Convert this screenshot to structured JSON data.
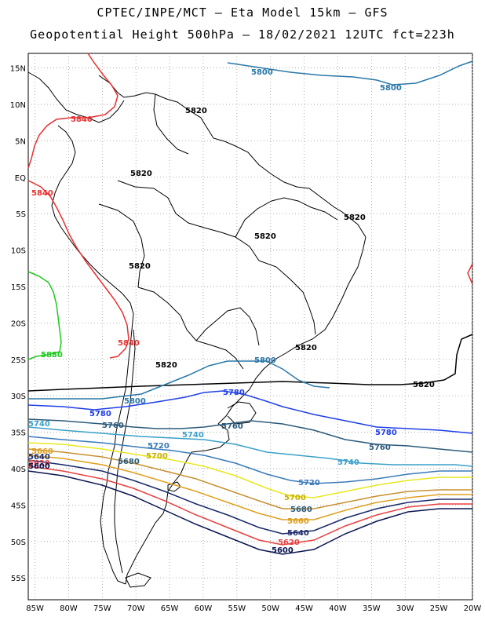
{
  "header": {
    "line1": "CPTEC/INPE/MCT –  Eta Model 15km – GFS",
    "line2": "Geopotential Height 500hPa – 18/02/2021 12UTC fct=223h"
  },
  "map": {
    "lon_range": [
      -86,
      -20
    ],
    "lat_range": [
      -58,
      17
    ],
    "lat_ticks": [
      "15N",
      "10N",
      "5N",
      "EQ",
      "5S",
      "10S",
      "15S",
      "20S",
      "25S",
      "30S",
      "35S",
      "40S",
      "45S",
      "50S",
      "55S"
    ],
    "lon_ticks": [
      "85W",
      "80W",
      "75W",
      "70W",
      "65W",
      "60W",
      "55W",
      "50W",
      "45W",
      "40W",
      "35W",
      "30W",
      "25W",
      "20W"
    ]
  },
  "contours": [
    {
      "value": "5840",
      "color": "#e83030",
      "labels": [
        "5840",
        "5840",
        "5840"
      ]
    },
    {
      "value": "5880",
      "color": "#1fc81f",
      "labels": [
        "5880"
      ]
    },
    {
      "value": "5820",
      "color": "#000000",
      "labels": [
        "5820",
        "5820",
        "5820",
        "5820",
        "5820",
        "5820",
        "5820",
        "5820"
      ]
    },
    {
      "value": "5800",
      "color": "#2a78a8",
      "labels": [
        "5800",
        "5800",
        "5800",
        "5800"
      ]
    },
    {
      "value": "5780",
      "color": "#1e3ee8",
      "labels": [
        "5780",
        "5780",
        "5780"
      ]
    },
    {
      "value": "5760",
      "color": "#2a5a7a",
      "labels": [
        "5760",
        "5760",
        "5760"
      ]
    },
    {
      "value": "5740",
      "color": "#3aa0c8",
      "labels": [
        "5740",
        "5740",
        "5740"
      ]
    },
    {
      "value": "5720",
      "color": "#3a7ab8",
      "labels": [
        "5720",
        "5720"
      ]
    },
    {
      "value": "5700",
      "color": "#e8e820",
      "labels": [
        "5700",
        "5700"
      ]
    },
    {
      "value": "5680",
      "color": "#c89030",
      "labels": [
        "5680",
        "5680"
      ]
    },
    {
      "value": "5660",
      "color": "#e0a020",
      "labels": [
        "5660",
        "5660"
      ]
    },
    {
      "value": "5640",
      "color": "#1a2a6a",
      "labels": [
        "5640",
        "5640"
      ]
    },
    {
      "value": "5620",
      "color": "#e84040",
      "labels": [
        "5620",
        "5620"
      ]
    },
    {
      "value": "5600",
      "color": "#0a1450",
      "labels": [
        "5600",
        "5600"
      ]
    }
  ]
}
